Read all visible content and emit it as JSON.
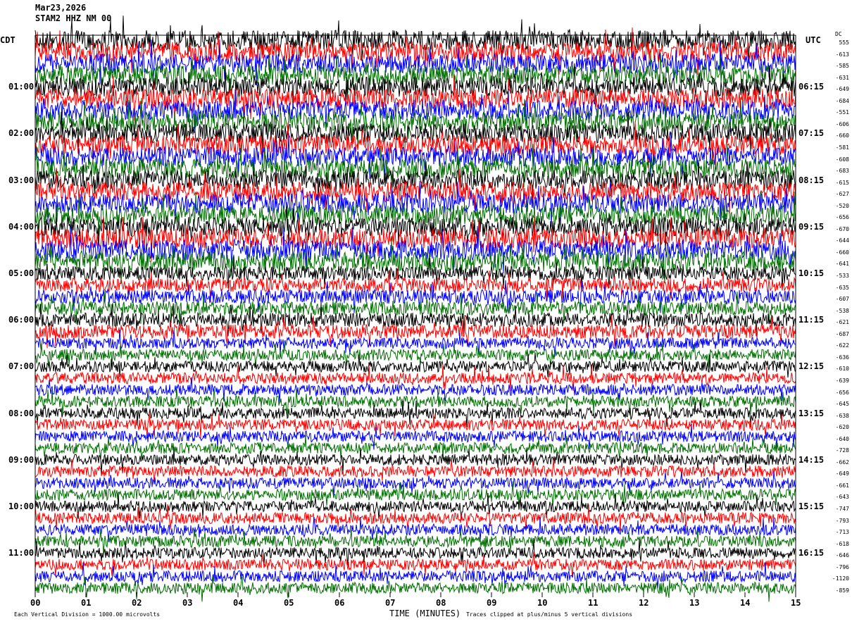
{
  "header": {
    "date": "Mar23,2026",
    "station": "STAM2 HHZ NM 00"
  },
  "left_timezone": "CDT",
  "right_timezone": "UTC",
  "dc_label": "DC",
  "footer": {
    "scale": "Each Vertical Division = 1000.00 microvolts",
    "xlabel": "TIME (MINUTES)",
    "clip_note": "Traces clipped at plus/minus 5 vertical divisions"
  },
  "chart_data": {
    "type": "line",
    "xlabel": "TIME (MINUTES)",
    "xlim": [
      0,
      15
    ],
    "x_ticks": [
      "00",
      "01",
      "02",
      "03",
      "04",
      "05",
      "06",
      "07",
      "08",
      "09",
      "10",
      "11",
      "12",
      "13",
      "14",
      "15"
    ],
    "left_labels": [
      "01:00",
      "02:00",
      "03:00",
      "04:00",
      "05:00",
      "06:00",
      "07:00",
      "08:00",
      "09:00",
      "10:00",
      "11:00"
    ],
    "right_labels": [
      "06:15",
      "07:15",
      "08:15",
      "09:15",
      "10:15",
      "11:15",
      "12:15",
      "13:15",
      "14:15",
      "15:15",
      "16:15"
    ],
    "trace_colors": [
      "#000000",
      "#ff0000",
      "#0000ff",
      "#007000"
    ],
    "dc_offsets": [
      "555",
      "-613",
      "-585",
      "-631",
      "-649",
      "-684",
      "-551",
      "-606",
      "-660",
      "-581",
      "-608",
      "-683",
      "-615",
      "-627",
      "-520",
      "-656",
      "-670",
      "-644",
      "-660",
      "-641",
      "-533",
      "-635",
      "-607",
      "-538",
      "-621",
      "-687",
      "-622",
      "-636",
      "-610",
      "-639",
      "-656",
      "-645",
      "-638",
      "-620",
      "-640",
      "-728",
      "-662",
      "-649",
      "-661",
      "-643",
      "-747",
      "-793",
      "-713",
      "-618",
      "-646",
      "-796",
      "-1120",
      "-859"
    ],
    "clip_divisions": 5
  }
}
